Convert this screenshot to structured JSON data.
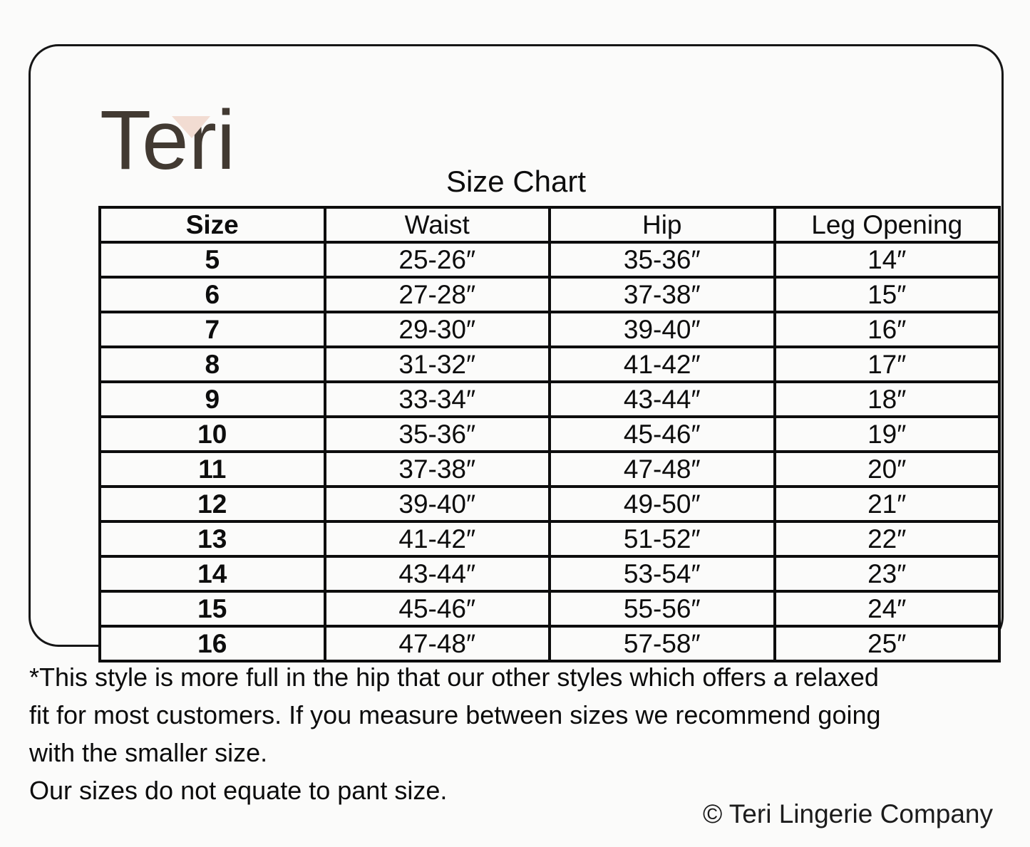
{
  "brand": {
    "name": "Teri"
  },
  "title": "Size Chart",
  "table": {
    "headers": [
      "Size",
      "Waist",
      "Hip",
      "Leg Opening"
    ],
    "rows": [
      [
        "5",
        "25-26″",
        "35-36″",
        "14″"
      ],
      [
        "6",
        "27-28″",
        "37-38″",
        "15″"
      ],
      [
        "7",
        "29-30″",
        "39-40″",
        "16″"
      ],
      [
        "8",
        "31-32″",
        "41-42″",
        "17″"
      ],
      [
        "9",
        "33-34″",
        "43-44″",
        "18″"
      ],
      [
        "10",
        "35-36″",
        "45-46″",
        "19″"
      ],
      [
        "11",
        "37-38″",
        "47-48″",
        "20″"
      ],
      [
        "12",
        "39-40″",
        "49-50″",
        "21″"
      ],
      [
        "13",
        "41-42″",
        "51-52″",
        "22″"
      ],
      [
        "14",
        "43-44″",
        "53-54″",
        "23″"
      ],
      [
        "15",
        "45-46″",
        "55-56″",
        "24″"
      ],
      [
        "16",
        "47-48″",
        "57-58″",
        "25″"
      ]
    ]
  },
  "notes": {
    "fit_note_lines": [
      "*This style is more full in the hip that our other styles which offers a relaxed",
      "fit for most customers. If you measure between sizes we recommend going",
      "with the smaller size."
    ],
    "pant_size_note": "Our sizes do not equate to pant size."
  },
  "footer": {
    "copyright": "© Teri Lingerie Company"
  },
  "colors": {
    "logo_text": "#423a32",
    "accent_triangle": "#f2dcd2",
    "table_border": "#0d0d0d",
    "background": "#fbfbfa"
  }
}
